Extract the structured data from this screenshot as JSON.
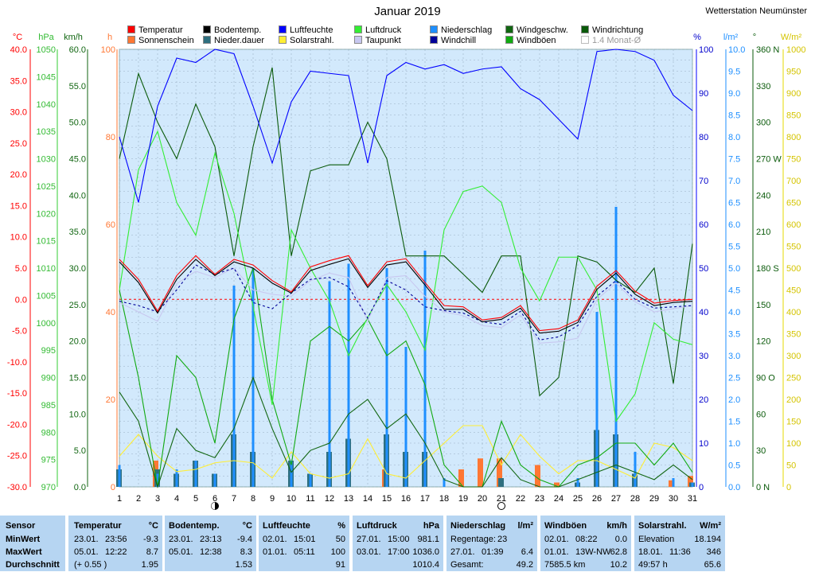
{
  "title": "Januar 2019",
  "station": "Wetterstation Neumünster",
  "legend": [
    {
      "label": "Temperatur",
      "color": "#ff0000"
    },
    {
      "label": "Sonnenschein",
      "color": "#ff7733"
    },
    {
      "label": "Bodentemp.",
      "color": "#000000"
    },
    {
      "label": "Nieder.dauer",
      "color": "#2f6f7f"
    },
    {
      "label": "Luftfeuchte",
      "color": "#0000ff"
    },
    {
      "label": "Solarstrahl.",
      "color": "#ffee33"
    },
    {
      "label": "Luftdruck",
      "color": "#33ee33"
    },
    {
      "label": "Taupunkt",
      "color": "#c8c8f0"
    },
    {
      "label": "Niederschlag",
      "color": "#1e8fff"
    },
    {
      "label": "Windchill",
      "color": "#000099"
    },
    {
      "label": "Windgeschw.",
      "color": "#116611"
    },
    {
      "label": "Windböen",
      "color": "#11aa11"
    },
    {
      "label": "Windrichtung",
      "color": "#0a5a0a"
    },
    {
      "label": "1.4 Monat-Ø",
      "color": "#ffffff"
    }
  ],
  "axes": {
    "left_units": [
      "°C",
      "hPa",
      "km/h",
      "h"
    ],
    "right_units": [
      "%",
      "l/m²",
      "°",
      "W/m²"
    ],
    "temp_ticks": [
      "40.0",
      "35.0",
      "30.0",
      "25.0",
      "20.0",
      "15.0",
      "10.0",
      "5.0",
      "0.0",
      "-5.0",
      "-10.0",
      "-15.0",
      "-20.0",
      "-25.0",
      "-30.0"
    ],
    "hpa_ticks": [
      "1050",
      "1045",
      "1040",
      "1035",
      "1030",
      "1025",
      "1020",
      "1015",
      "1010",
      "1005",
      "1000",
      "995",
      "990",
      "985",
      "980",
      "975",
      "970"
    ],
    "kmh_ticks": [
      "60.0",
      "55.0",
      "50.0",
      "45.0",
      "40.0",
      "35.0",
      "30.0",
      "25.0",
      "20.0",
      "15.0",
      "10.0",
      "5.0",
      "0.0"
    ],
    "h_ticks": [
      "100",
      "80",
      "60",
      "40",
      "20",
      "0"
    ],
    "pct_ticks": [
      "100",
      "90",
      "80",
      "70",
      "60",
      "50",
      "40",
      "30",
      "20",
      "10",
      "0"
    ],
    "lm2_ticks": [
      "10.0",
      "9.5",
      "9.0",
      "8.5",
      "8.0",
      "7.5",
      "7.0",
      "6.5",
      "6.0",
      "5.5",
      "5.0",
      "4.5",
      "4.0",
      "3.5",
      "3.0",
      "2.5",
      "2.0",
      "1.5",
      "1.0",
      "0.5",
      "0.0"
    ],
    "deg_ticks": [
      "360 N",
      "330",
      "300",
      "270 W",
      "240",
      "210",
      "180 S",
      "150",
      "120",
      "90 O",
      "60",
      "30",
      "0 N"
    ],
    "wm2_ticks": [
      "1000",
      "950",
      "900",
      "850",
      "800",
      "750",
      "700",
      "650",
      "600",
      "550",
      "500",
      "450",
      "400",
      "350",
      "300",
      "250",
      "200",
      "150",
      "100",
      "50",
      "0"
    ],
    "day_ticks": [
      "1",
      "2",
      "3",
      "4",
      "5",
      "6",
      "7",
      "8",
      "9",
      "10",
      "11",
      "12",
      "13",
      "14",
      "15",
      "16",
      "17",
      "18",
      "19",
      "20",
      "21",
      "22",
      "23",
      "24",
      "25",
      "26",
      "27",
      "28",
      "29",
      "30",
      "31"
    ]
  },
  "chart_data": {
    "type": "line",
    "title": "Januar 2019",
    "x_label": "",
    "x": [
      1,
      2,
      3,
      4,
      5,
      6,
      7,
      8,
      9,
      10,
      11,
      12,
      13,
      14,
      15,
      16,
      17,
      18,
      19,
      20,
      21,
      22,
      23,
      24,
      25,
      26,
      27,
      28,
      29,
      30,
      31
    ],
    "moon_phases": [
      {
        "day": 6,
        "phase": "new"
      },
      {
        "day": 21,
        "phase": "full"
      }
    ],
    "series": [
      {
        "name": "Temperatur",
        "unit": "°C",
        "axis": "temp",
        "color": "#ff0000",
        "values": [
          6.4,
          3.2,
          -1.9,
          3.8,
          7.0,
          4.0,
          6.4,
          5.5,
          3.0,
          1.2,
          5.2,
          6.2,
          7.0,
          2.2,
          6.0,
          6.5,
          2.7,
          -1.0,
          -1.2,
          -3.3,
          -2.9,
          -1.0,
          -5.0,
          -4.7,
          -3.3,
          2.1,
          4.6,
          1.3,
          -0.6,
          -0.2,
          0.0
        ]
      },
      {
        "name": "Bodentemp.",
        "unit": "°C",
        "axis": "temp",
        "color": "#000000",
        "values": [
          6.0,
          2.7,
          -2.2,
          3.2,
          6.4,
          3.8,
          6.0,
          5.0,
          2.6,
          1.0,
          4.6,
          5.6,
          6.5,
          1.9,
          5.5,
          6.0,
          2.3,
          -1.6,
          -1.6,
          -3.6,
          -3.2,
          -1.4,
          -5.4,
          -5.1,
          -3.7,
          1.6,
          4.2,
          0.8,
          -1.0,
          -0.5,
          -0.3
        ]
      },
      {
        "name": "Windchill",
        "unit": "°C",
        "axis": "temp",
        "color": "#000099",
        "values": [
          -0.3,
          -1.0,
          -2.0,
          1.5,
          5.5,
          4.0,
          5.0,
          -0.5,
          -1.5,
          1.0,
          3.2,
          3.5,
          2.0,
          -3.0,
          3.0,
          1.5,
          -1.2,
          -1.8,
          -2.2,
          -3.6,
          -4.0,
          -1.9,
          -6.5,
          -6.0,
          -4.2,
          0.5,
          3.0,
          0.0,
          -1.4,
          -1.2,
          -1.0
        ]
      },
      {
        "name": "Taupunkt",
        "unit": "°C",
        "axis": "temp",
        "color": "#c8c8f0",
        "values": [
          -0.5,
          -2.0,
          -3.5,
          2.5,
          4.5,
          3.5,
          5.0,
          1.5,
          0.8,
          0.5,
          3.0,
          4.2,
          3.5,
          -3.5,
          3.5,
          3.8,
          0.5,
          -2.0,
          -2.6,
          -4.2,
          -4.5,
          -2.5,
          -7.0,
          -6.8,
          -6.2,
          0.0,
          2.6,
          -0.4,
          -2.0,
          -1.5,
          -1.0
        ]
      },
      {
        "name": "Luftfeuchte",
        "unit": "%",
        "axis": "pct",
        "color": "#0000ff",
        "values": [
          80,
          65,
          87,
          98,
          97,
          100,
          99,
          87,
          74,
          88,
          95,
          94.5,
          94,
          74,
          94,
          97,
          95.5,
          96.5,
          94.5,
          95.5,
          96,
          91,
          88.5,
          84,
          79.5,
          99.5,
          100,
          99.5,
          97.5,
          89.5,
          86
        ]
      },
      {
        "name": "Luftdruck",
        "unit": "hPa",
        "axis": "hpa",
        "color": "#33ee33",
        "values": [
          1006,
          1028,
          1035,
          1022,
          1016,
          1031,
          1020,
          1003,
          985,
          1017,
          1010,
          1004,
          994,
          1001,
          1007,
          1002,
          995,
          1017,
          1024,
          1025,
          1022,
          1010,
          1004,
          1012,
          1012,
          1006,
          982,
          987,
          1000,
          997,
          996
        ]
      },
      {
        "name": "Windgeschw.",
        "unit": "km/h",
        "axis": "kmh",
        "color": "#116611",
        "values": [
          13,
          9,
          0,
          8,
          5,
          4,
          8,
          15,
          8,
          2,
          5,
          6,
          10,
          12,
          8,
          10,
          6,
          1,
          0,
          0,
          4,
          1,
          0,
          0,
          1,
          2,
          3,
          2,
          1,
          3,
          1
        ]
      },
      {
        "name": "Windböen",
        "unit": "km/h",
        "axis": "kmh",
        "color": "#11aa11",
        "values": [
          27,
          15,
          0,
          18,
          15,
          6,
          23,
          30,
          12,
          3,
          20,
          22,
          20,
          23,
          18,
          20,
          14,
          3,
          0,
          0,
          9,
          3,
          1,
          0,
          3,
          4,
          6,
          6,
          3,
          6,
          2
        ]
      },
      {
        "name": "Windrichtung",
        "unit": "°",
        "axis": "deg",
        "color": "#0a5a0a",
        "values": [
          270,
          340,
          300,
          270,
          315,
          280,
          190,
          280,
          345,
          190,
          260,
          265,
          265,
          300,
          270,
          190,
          190,
          190,
          175,
          160,
          190,
          190,
          75,
          90,
          190,
          185,
          170,
          160,
          180,
          85,
          200
        ]
      },
      {
        "name": "Niederschlag",
        "unit": "l/m²",
        "axis": "lm2",
        "type": "bar",
        "color": "#1e8fff",
        "values": [
          0.5,
          0,
          0.3,
          0.4,
          0.6,
          0.3,
          4.6,
          5.0,
          0,
          0.6,
          0.3,
          4.7,
          5.1,
          0,
          5.0,
          3.2,
          5.4,
          0.2,
          0,
          0,
          0,
          0,
          0,
          0,
          0.2,
          4.0,
          6.4,
          0.8,
          0,
          0.2,
          0.1
        ]
      },
      {
        "name": "Nieder.dauer",
        "unit": "h",
        "axis": "h",
        "type": "bar",
        "color": "#2f6f7f",
        "values": [
          4,
          0,
          4,
          3,
          6,
          3,
          12,
          8,
          0,
          6,
          3,
          8,
          11,
          0,
          12,
          8,
          8,
          0,
          0,
          0,
          2,
          0,
          0,
          0,
          1,
          13,
          12,
          3,
          0,
          0,
          1
        ]
      },
      {
        "name": "Sonnenschein",
        "unit": "h",
        "axis": "h",
        "type": "bar",
        "color": "#ff7733",
        "values": [
          0,
          6,
          0,
          0,
          0,
          0,
          0,
          0,
          0,
          0,
          0,
          0,
          0,
          4,
          0,
          0,
          0,
          4,
          6.5,
          6.5,
          0,
          5,
          1,
          0,
          0,
          0,
          0,
          0,
          1.5,
          2.5,
          0
        ]
      },
      {
        "name": "Solarstrahl.",
        "unit": "W/m²",
        "axis": "wm2",
        "color": "#ffee33",
        "values": [
          70,
          120,
          70,
          35,
          40,
          55,
          60,
          55,
          20,
          80,
          30,
          20,
          30,
          110,
          30,
          20,
          60,
          100,
          140,
          140,
          50,
          120,
          70,
          30,
          60,
          60,
          40,
          20,
          100,
          90,
          60
        ]
      }
    ]
  },
  "stats": {
    "sensor": {
      "header": "Sensor",
      "min": "MinWert",
      "max": "MaxWert",
      "avg": "Durchschnitt"
    },
    "temperature": {
      "header": "Temperatur",
      "unit": "°C",
      "min_date": "23.01.",
      "min_time": "23:56",
      "min_val": "-9.3",
      "max_date": "05.01.",
      "max_time": "12:22",
      "max_val": "8.7",
      "avg_note": "(+ 0.55 )",
      "avg_val": "1.95"
    },
    "soil": {
      "header": "Bodentemp.",
      "unit": "°C",
      "min_date": "23.01.",
      "min_time": "23:13",
      "min_val": "-9.4",
      "max_date": "05.01.",
      "max_time": "12:38",
      "max_val": "8.3",
      "avg_val": "1.53"
    },
    "humidity": {
      "header": "Luftfeuchte",
      "unit": "%",
      "min_date": "02.01.",
      "min_time": "15:01",
      "min_val": "50",
      "max_date": "01.01.",
      "max_time": "05:11",
      "max_val": "100",
      "avg_val": "91"
    },
    "pressure": {
      "header": "Luftdruck",
      "unit": "hPa",
      "min_date": "27.01.",
      "min_time": "15:00",
      "min_val": "981.1",
      "max_date": "03.01.",
      "max_time": "17:00",
      "max_val": "1036.0",
      "avg_val": "1010.4"
    },
    "precip": {
      "header": "Niederschlag",
      "unit": "l/m²",
      "row1_label": "Regentage:",
      "row1_val": "23",
      "row2_date": "27.01.",
      "row2_time": "01:39",
      "row2_val": "6.4",
      "row3_label": "Gesamt:",
      "row3_val": "49.2"
    },
    "gusts": {
      "header": "Windböen",
      "unit": "km/h",
      "row1_date": "02.01.",
      "row1_time": "08:22",
      "row1_val": "0.0",
      "row2_date": "01.01.",
      "row2_time": "13W-NW",
      "row2_val": "62.8",
      "row3_label": "7585.5 km",
      "row3_val": "10.2"
    },
    "solar": {
      "header": "Solarstrahl.",
      "unit": "W/m²",
      "row1_label": "Elevation",
      "row1_val": "18.194",
      "row2_date": "18.01.",
      "row2_time": "11:36",
      "row2_val": "346",
      "row3_label": "49:57 h",
      "row3_val": "65.6"
    }
  }
}
